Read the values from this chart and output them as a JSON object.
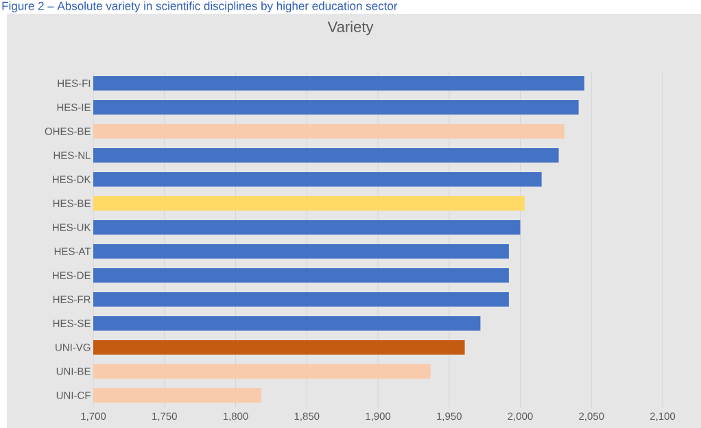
{
  "chart_data": {
    "type": "bar",
    "orientation": "horizontal",
    "title": "Variety",
    "annotations": [
      "Figure 2 – Absolute variety in scientific disciplines by higher education sector"
    ],
    "categories": [
      "HES-FI",
      "HES-IE",
      "OHES-BE",
      "HES-NL",
      "HES-DK",
      "HES-BE",
      "HES-UK",
      "HES-AT",
      "HES-DE",
      "HES-FR",
      "HES-SE",
      "UNI-VG",
      "UNI-BE",
      "UNI-CF"
    ],
    "values": [
      2045,
      2041,
      2031,
      2027,
      2015,
      2003,
      2000,
      1992,
      1992,
      1992,
      1972,
      1961,
      1937,
      1818
    ],
    "colors": [
      "#4472c4",
      "#4472c4",
      "#f8cbad",
      "#4472c4",
      "#4472c4",
      "#ffd966",
      "#4472c4",
      "#4472c4",
      "#4472c4",
      "#4472c4",
      "#4472c4",
      "#c55a11",
      "#f8cbad",
      "#f8cbad"
    ],
    "xlim": [
      1700,
      2100
    ],
    "xticks": [
      {
        "value": 1700,
        "label": "1,700"
      },
      {
        "value": 1750,
        "label": "1,750"
      },
      {
        "value": 1800,
        "label": "1,800"
      },
      {
        "value": 1850,
        "label": "1,850"
      },
      {
        "value": 1900,
        "label": "1,900"
      },
      {
        "value": 1950,
        "label": "1,950"
      },
      {
        "value": 2000,
        "label": "2,000"
      },
      {
        "value": 2050,
        "label": "2,050"
      },
      {
        "value": 2100,
        "label": "2,100"
      }
    ],
    "grid": "x"
  }
}
